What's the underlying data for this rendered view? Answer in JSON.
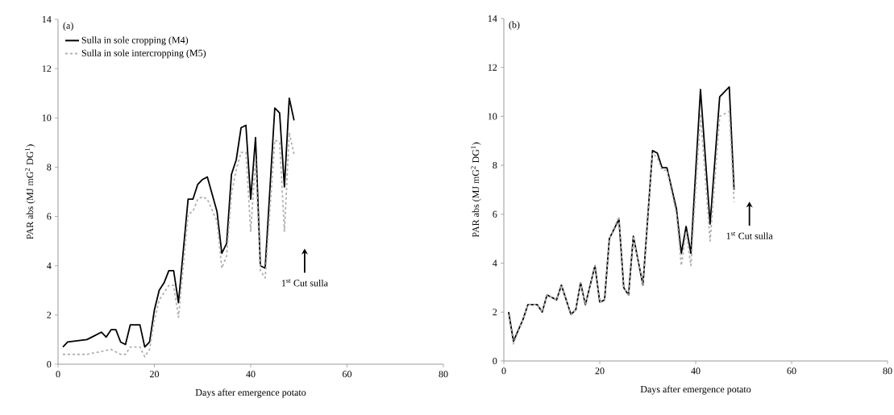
{
  "chart_data": [
    {
      "type": "line",
      "xlabel": "Days after emergence potato",
      "ylabel": "PAR abs (MJ mG$^{2}$ DG$^{1}$)",
      "xlim": [
        0,
        80
      ],
      "ylim": [
        0,
        14
      ],
      "xticks": [
        0,
        20,
        40,
        60,
        80
      ],
      "yticks": [
        0,
        2,
        4,
        6,
        8,
        10,
        12,
        14
      ],
      "legend": "top left",
      "annotations": [
        "(a)",
        "1$^{st}$ Cut sulla"
      ],
      "series": [
        {
          "name": "Sulla in sole cropping (M4)",
          "color": "#000000",
          "line_style": "solid",
          "x": [
            1,
            2,
            6,
            7,
            9,
            10,
            11,
            12,
            13,
            14,
            15,
            17,
            18,
            19,
            20,
            21,
            22,
            23,
            24,
            25,
            27,
            28,
            29,
            30,
            31,
            33,
            34,
            35,
            36,
            37,
            38,
            39,
            40,
            41,
            42,
            43,
            45,
            46,
            47,
            48,
            49
          ],
          "values": [
            0.7,
            0.9,
            1.0,
            1.1,
            1.3,
            1.1,
            1.4,
            1.4,
            0.9,
            0.8,
            1.6,
            1.6,
            0.7,
            0.9,
            2.2,
            3.0,
            3.3,
            3.8,
            3.8,
            2.5,
            6.7,
            6.7,
            7.3,
            7.5,
            7.6,
            6.2,
            4.5,
            4.9,
            7.7,
            8.3,
            9.6,
            9.7,
            6.7,
            9.2,
            4.0,
            3.9,
            10.4,
            10.2,
            7.2,
            10.8,
            9.9
          ]
        },
        {
          "name": "Sulla in sole intercropping (M5)",
          "color": "#b0b0b0",
          "line_style": "dashed",
          "x": [
            1,
            6,
            11,
            13,
            14,
            15,
            17,
            18,
            19,
            20,
            21,
            23,
            24,
            25,
            27,
            28,
            29,
            30,
            31,
            33,
            34,
            35,
            36,
            37,
            38,
            39,
            40,
            41,
            42,
            43,
            45,
            46,
            47,
            48,
            49
          ],
          "values": [
            0.4,
            0.4,
            0.6,
            0.4,
            0.4,
            0.7,
            0.7,
            0.3,
            0.6,
            1.8,
            2.6,
            3.2,
            3.2,
            1.9,
            6.1,
            6.2,
            6.7,
            6.8,
            6.7,
            5.8,
            3.9,
            4.4,
            6.9,
            7.9,
            8.6,
            8.6,
            5.4,
            8.3,
            3.8,
            3.5,
            9.1,
            9.0,
            5.4,
            9.4,
            8.5
          ]
        }
      ]
    },
    {
      "type": "line",
      "xlabel": "Days after emergence potato",
      "ylabel": "PAR abs (MJ mG$^{2}$ DG$^{1}$)",
      "xlim": [
        0,
        80
      ],
      "ylim": [
        0,
        14
      ],
      "xticks": [
        0,
        20,
        40,
        60,
        80
      ],
      "yticks": [
        0,
        2,
        4,
        6,
        8,
        10,
        12,
        14
      ],
      "annotations": [
        "(b)",
        "1$^{st}$ Cut sulla"
      ],
      "series": [
        {
          "color": "#000000",
          "line_style": "solid",
          "x": [
            1,
            2,
            4,
            5,
            7,
            8,
            9,
            11,
            12,
            14,
            15,
            16,
            17,
            19,
            20,
            21,
            22,
            24,
            25,
            26,
            27,
            29,
            31,
            32,
            33,
            34,
            36,
            37,
            38,
            39,
            41,
            43,
            45,
            47,
            48
          ],
          "values": [
            2.0,
            0.8,
            1.7,
            2.3,
            2.3,
            2.0,
            2.7,
            2.5,
            3.1,
            1.9,
            2.1,
            3.2,
            2.3,
            3.9,
            2.4,
            2.5,
            5.0,
            5.8,
            3.0,
            2.7,
            5.1,
            3.1,
            8.6,
            8.5,
            7.9,
            7.9,
            6.2,
            4.4,
            5.5,
            4.4,
            11.1,
            5.6,
            10.8,
            11.2,
            7.0
          ]
        },
        {
          "color": "#b0b0b0",
          "line_style": "dashed",
          "x": [
            1,
            2,
            4,
            5,
            7,
            8,
            9,
            11,
            12,
            14,
            15,
            16,
            17,
            19,
            20,
            21,
            22,
            24,
            25,
            26,
            27,
            29,
            31,
            32,
            33,
            34,
            36,
            37,
            38,
            39,
            41,
            43,
            45,
            47,
            48
          ],
          "values": [
            1.9,
            0.7,
            1.7,
            2.3,
            2.3,
            2.0,
            2.7,
            2.5,
            3.1,
            1.9,
            2.1,
            3.2,
            2.3,
            3.9,
            2.4,
            2.5,
            5.0,
            5.9,
            3.0,
            2.7,
            5.1,
            3.1,
            8.5,
            8.3,
            7.8,
            7.8,
            6.0,
            3.9,
            5.3,
            3.9,
            10.1,
            4.9,
            10.0,
            10.2,
            6.5
          ]
        }
      ]
    }
  ]
}
